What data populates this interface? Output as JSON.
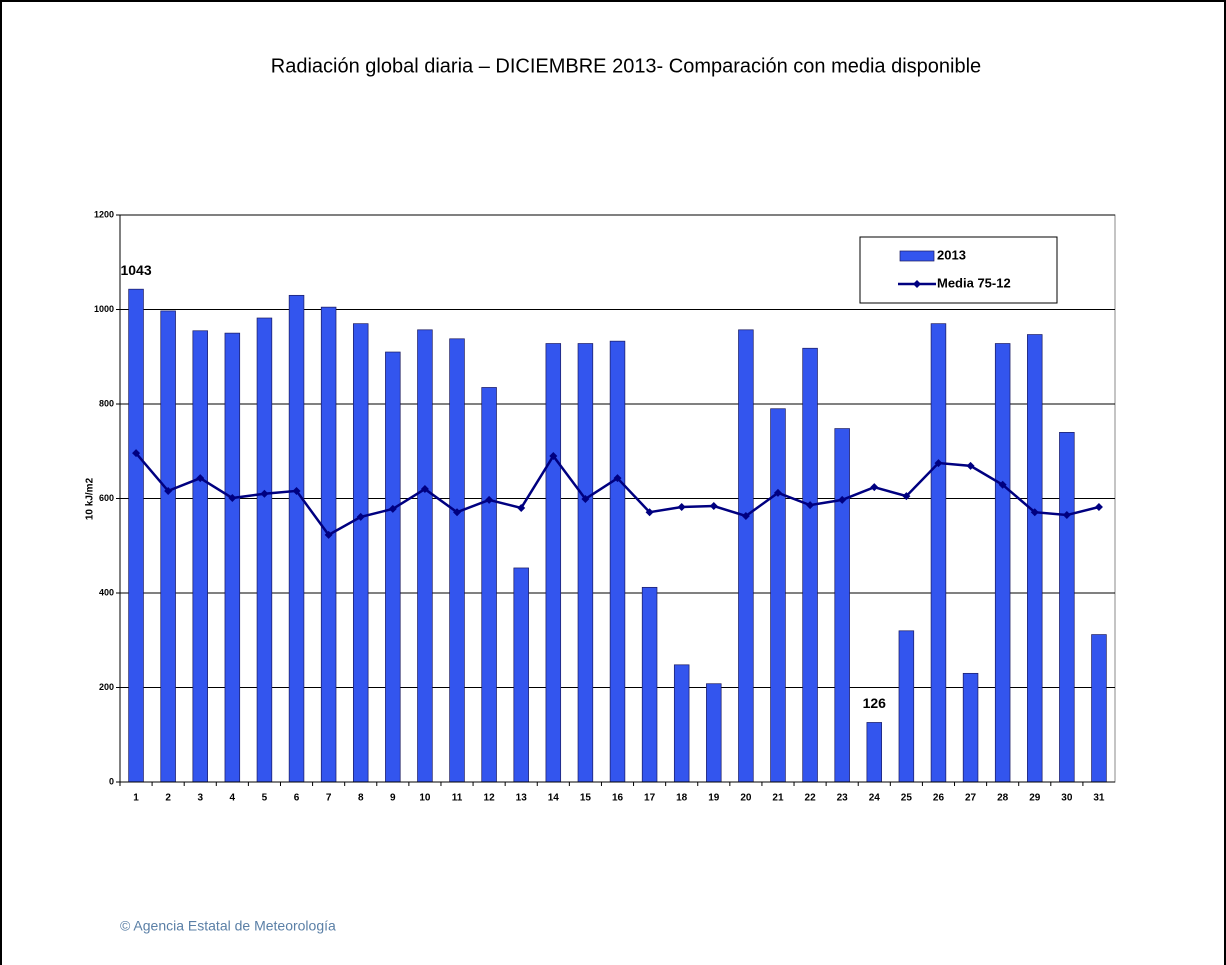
{
  "chart_data": {
    "type": "bar",
    "title": "Radiación global diaria –  DICIEMBRE 2013- Comparación con media disponible",
    "y_label": "10 kJ/m2",
    "categories": [
      "1",
      "2",
      "3",
      "4",
      "5",
      "6",
      "7",
      "8",
      "9",
      "10",
      "11",
      "12",
      "13",
      "14",
      "15",
      "16",
      "17",
      "18",
      "19",
      "20",
      "21",
      "22",
      "23",
      "24",
      "25",
      "26",
      "27",
      "28",
      "29",
      "30",
      "31"
    ],
    "series": [
      {
        "name": "2013",
        "type": "bar",
        "color": "#3355ee",
        "values": [
          1043,
          997,
          955,
          950,
          982,
          1030,
          1005,
          970,
          910,
          957,
          938,
          835,
          453,
          928,
          928,
          933,
          412,
          248,
          208,
          957,
          790,
          918,
          748,
          126,
          320,
          970,
          230,
          928,
          947,
          740,
          312
        ],
        "value_labels": [
          "1043",
          null,
          null,
          null,
          null,
          null,
          null,
          null,
          null,
          null,
          null,
          null,
          null,
          null,
          null,
          null,
          null,
          null,
          null,
          null,
          null,
          null,
          null,
          "126",
          null,
          null,
          null,
          null,
          null,
          null,
          null
        ]
      },
      {
        "name": "Media 75-12",
        "type": "line",
        "color": "#000080",
        "values": [
          696,
          616,
          643,
          601,
          610,
          616,
          523,
          561,
          578,
          620,
          571,
          597,
          580,
          690,
          599,
          643,
          571,
          582,
          584,
          563,
          612,
          586,
          597,
          624,
          605,
          675,
          669,
          629,
          571,
          565,
          582
        ]
      }
    ],
    "ylim": [
      0,
      1200
    ],
    "yticks": [
      0,
      200,
      400,
      600,
      800,
      1000,
      1200
    ],
    "grid": true,
    "legend": "upper right",
    "footer": "© Agencia Estatal de Meteorología"
  }
}
